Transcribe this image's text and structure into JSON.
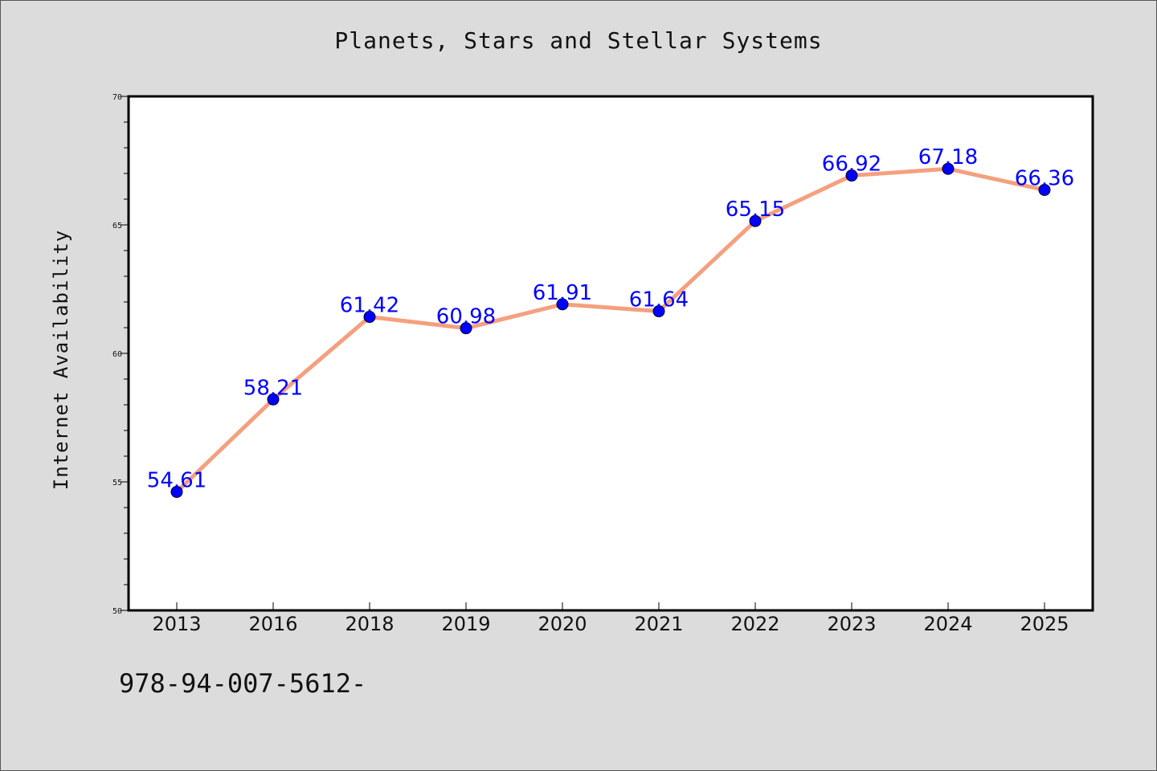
{
  "chart_data": {
    "type": "line",
    "title": "Planets, Stars and Stellar Systems",
    "xlabel": "",
    "ylabel": "Internet Availability",
    "categories": [
      "2013",
      "2016",
      "2018",
      "2019",
      "2020",
      "2021",
      "2022",
      "2023",
      "2024",
      "2025"
    ],
    "values": [
      54.61,
      58.21,
      61.42,
      60.98,
      61.91,
      61.64,
      65.15,
      66.92,
      67.18,
      66.36
    ],
    "data_labels": [
      "54.61",
      "58.21",
      "61.42",
      "60.98",
      "61.91",
      "61.64",
      "65.15",
      "66.92",
      "67.18",
      "66.36"
    ],
    "ylim": [
      50,
      70
    ],
    "yticks": [
      "50",
      "55",
      "60",
      "65",
      "70"
    ],
    "grid": false,
    "legend": "none",
    "line_color": "#f4a07f",
    "marker_color": "#0000ff",
    "label_color": "#0000ff",
    "background": "#dcdcdc",
    "plot_background": "#ffffff"
  },
  "footnote": "978-94-007-5612-"
}
